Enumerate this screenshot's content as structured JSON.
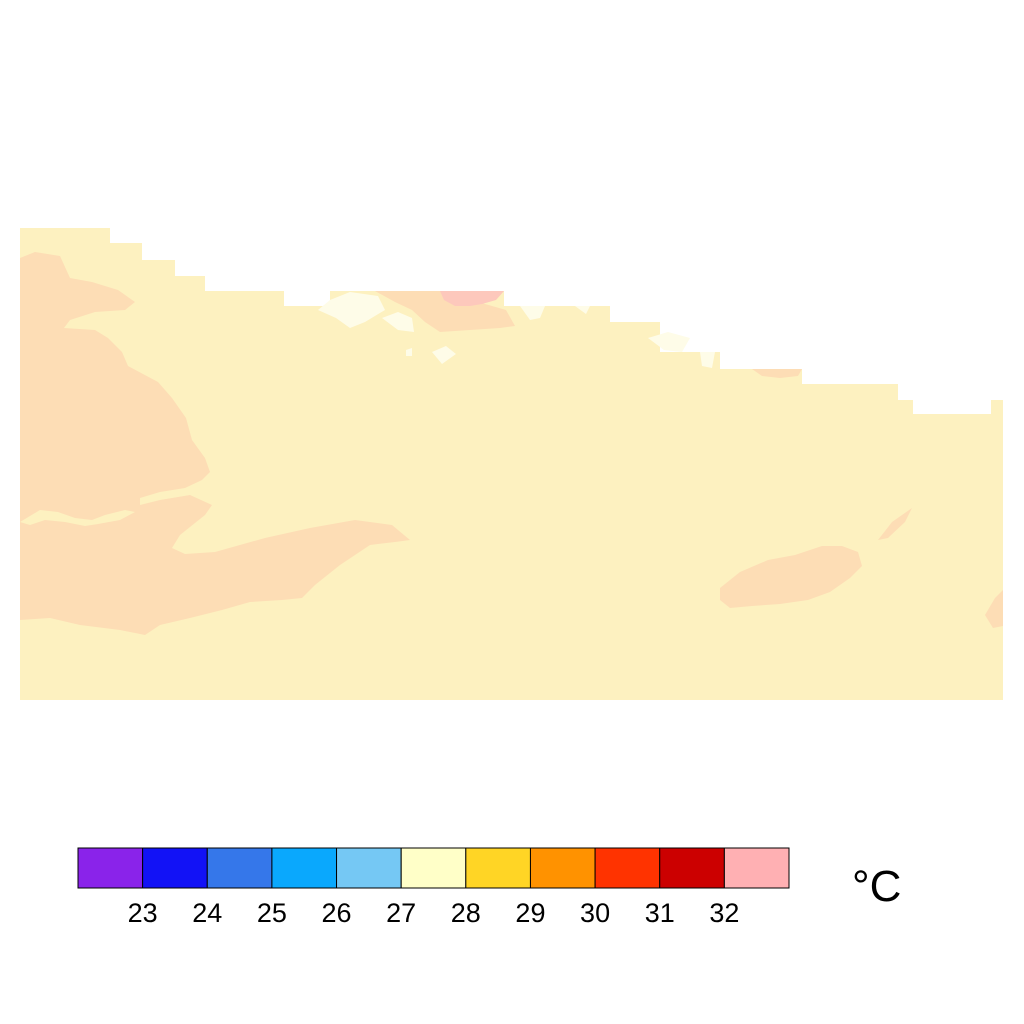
{
  "map": {
    "field_colors": {
      "base": "#FDF1C0",
      "warm_patch": "#FDDDB5",
      "hot_patch": "#FDC8BC",
      "cool_patch": "#FEFCE8"
    }
  },
  "colorbar": {
    "colors": [
      "#8A23EA",
      "#1212F6",
      "#3577EA",
      "#0AA8FD",
      "#75C8F4",
      "#FFFFC8",
      "#FFD525",
      "#FF9200",
      "#FF3300",
      "#CC0000",
      "#FFB0B3"
    ],
    "ticks": [
      "23",
      "24",
      "25",
      "26",
      "27",
      "28",
      "29",
      "30",
      "31",
      "32"
    ],
    "unit": "°C"
  }
}
